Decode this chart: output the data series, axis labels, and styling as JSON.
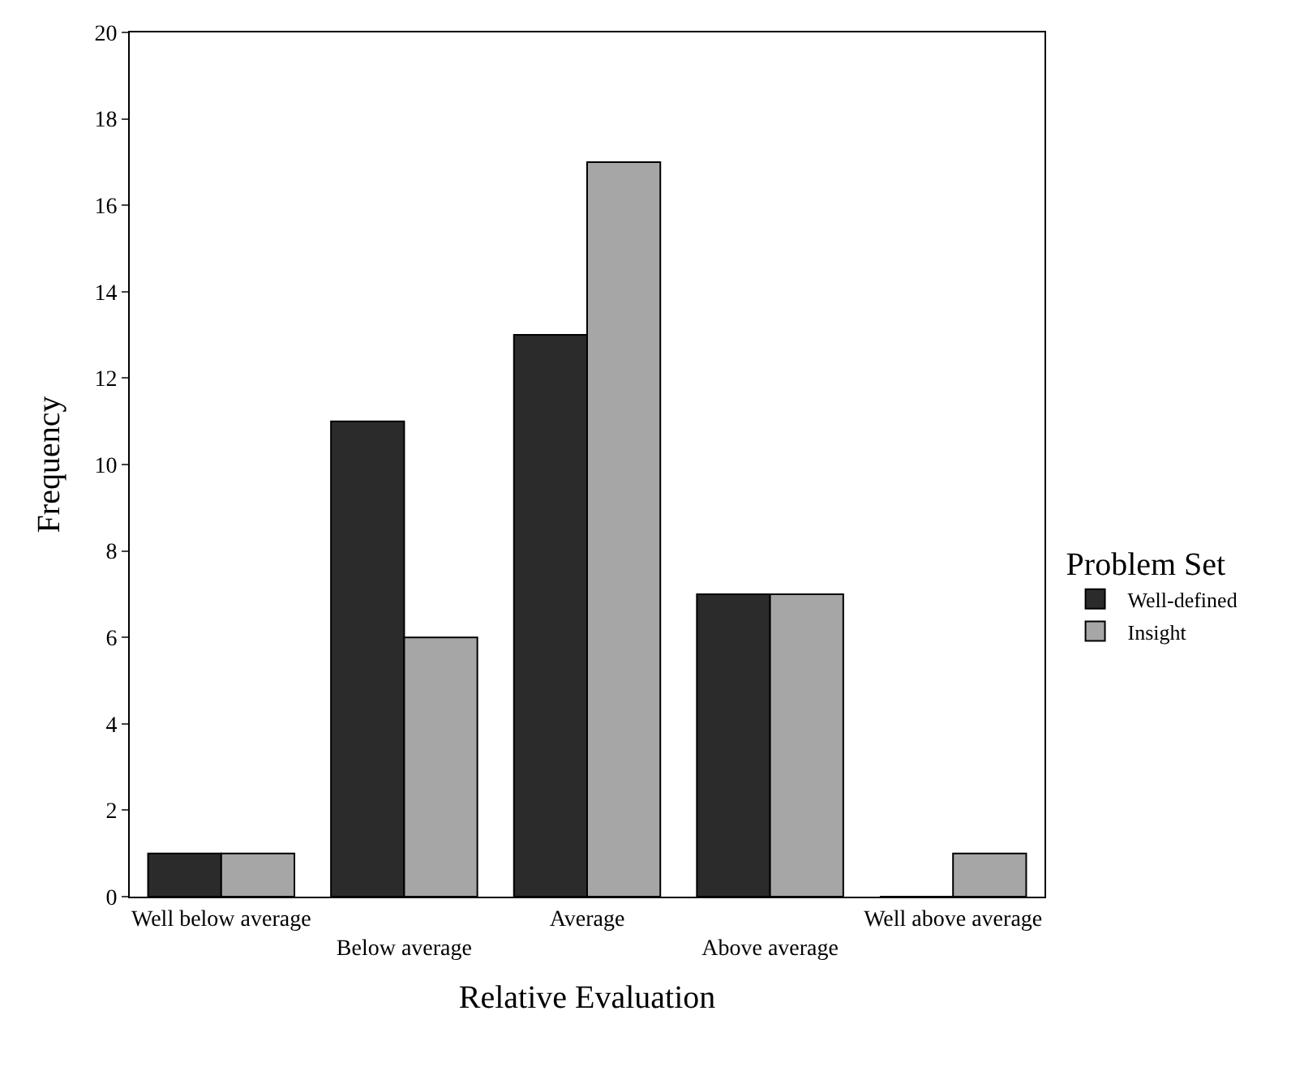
{
  "chart_data": {
    "type": "bar",
    "xlabel": "Relative Evaluation",
    "ylabel": "Frequency",
    "legend_title": "Problem Set",
    "categories": [
      "Well below average",
      "Below average",
      "Average",
      "Above average",
      "Well above average"
    ],
    "series": [
      {
        "name": "Well-defined",
        "color": "#2b2b2b",
        "values": [
          1,
          11,
          13,
          7,
          0
        ]
      },
      {
        "name": "Insight",
        "color": "#a6a6a6",
        "values": [
          1,
          6,
          17,
          7,
          1
        ]
      }
    ],
    "ylim": [
      0,
      20
    ],
    "yticks": [
      0,
      2,
      4,
      6,
      8,
      10,
      12,
      14,
      16,
      18,
      20
    ],
    "legend": "right"
  }
}
